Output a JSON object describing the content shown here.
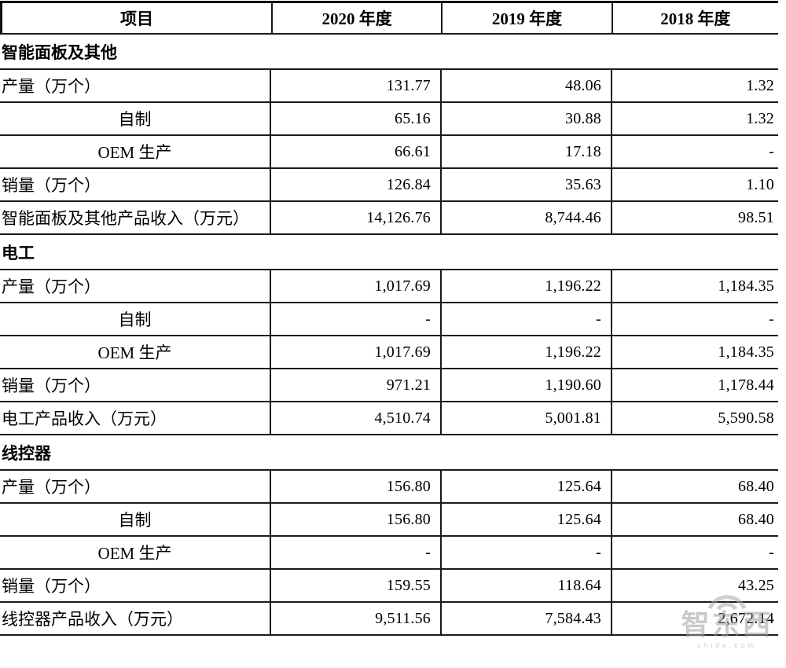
{
  "table": {
    "header": {
      "item_label": "项目",
      "years": [
        "2020 年度",
        "2019 年度",
        "2018 年度"
      ]
    },
    "sections": [
      {
        "title": "智能面板及其他",
        "rows": [
          {
            "label": "产量（万个）",
            "align": "left",
            "values": [
              "131.77",
              "48.06",
              "1.32"
            ]
          },
          {
            "label": "自制",
            "align": "center",
            "values": [
              "65.16",
              "30.88",
              "1.32"
            ]
          },
          {
            "label": "OEM 生产",
            "align": "center",
            "values": [
              "66.61",
              "17.18",
              "-"
            ]
          },
          {
            "label": "销量（万个）",
            "align": "left",
            "values": [
              "126.84",
              "35.63",
              "1.10"
            ]
          },
          {
            "label": "智能面板及其他产品收入（万元）",
            "align": "left",
            "values": [
              "14,126.76",
              "8,744.46",
              "98.51"
            ]
          }
        ]
      },
      {
        "title": "电工",
        "rows": [
          {
            "label": "产量（万个）",
            "align": "left",
            "values": [
              "1,017.69",
              "1,196.22",
              "1,184.35"
            ]
          },
          {
            "label": "自制",
            "align": "center",
            "values": [
              "-",
              "-",
              "-"
            ]
          },
          {
            "label": "OEM 生产",
            "align": "center",
            "values": [
              "1,017.69",
              "1,196.22",
              "1,184.35"
            ]
          },
          {
            "label": "销量（万个）",
            "align": "left",
            "values": [
              "971.21",
              "1,190.60",
              "1,178.44"
            ]
          },
          {
            "label": "电工产品收入（万元）",
            "align": "left",
            "values": [
              "4,510.74",
              "5,001.81",
              "5,590.58"
            ]
          }
        ]
      },
      {
        "title": "线控器",
        "rows": [
          {
            "label": "产量（万个）",
            "align": "left",
            "values": [
              "156.80",
              "125.64",
              "68.40"
            ]
          },
          {
            "label": "自制",
            "align": "center",
            "values": [
              "156.80",
              "125.64",
              "68.40"
            ]
          },
          {
            "label": "OEM 生产",
            "align": "center",
            "values": [
              "-",
              "-",
              "-"
            ]
          },
          {
            "label": "销量（万个）",
            "align": "left",
            "values": [
              "159.55",
              "118.64",
              "43.25"
            ]
          },
          {
            "label": "线控器产品收入（万元）",
            "align": "left",
            "values": [
              "9,511.56",
              "7,584.43",
              "2,672.14"
            ]
          }
        ]
      }
    ]
  },
  "watermark": {
    "text": "智东西",
    "subtext": "zhidx.com"
  },
  "colors": {
    "border": "#1a1a1a",
    "text": "#000000",
    "watermark_gray": "#9f9f9f"
  }
}
